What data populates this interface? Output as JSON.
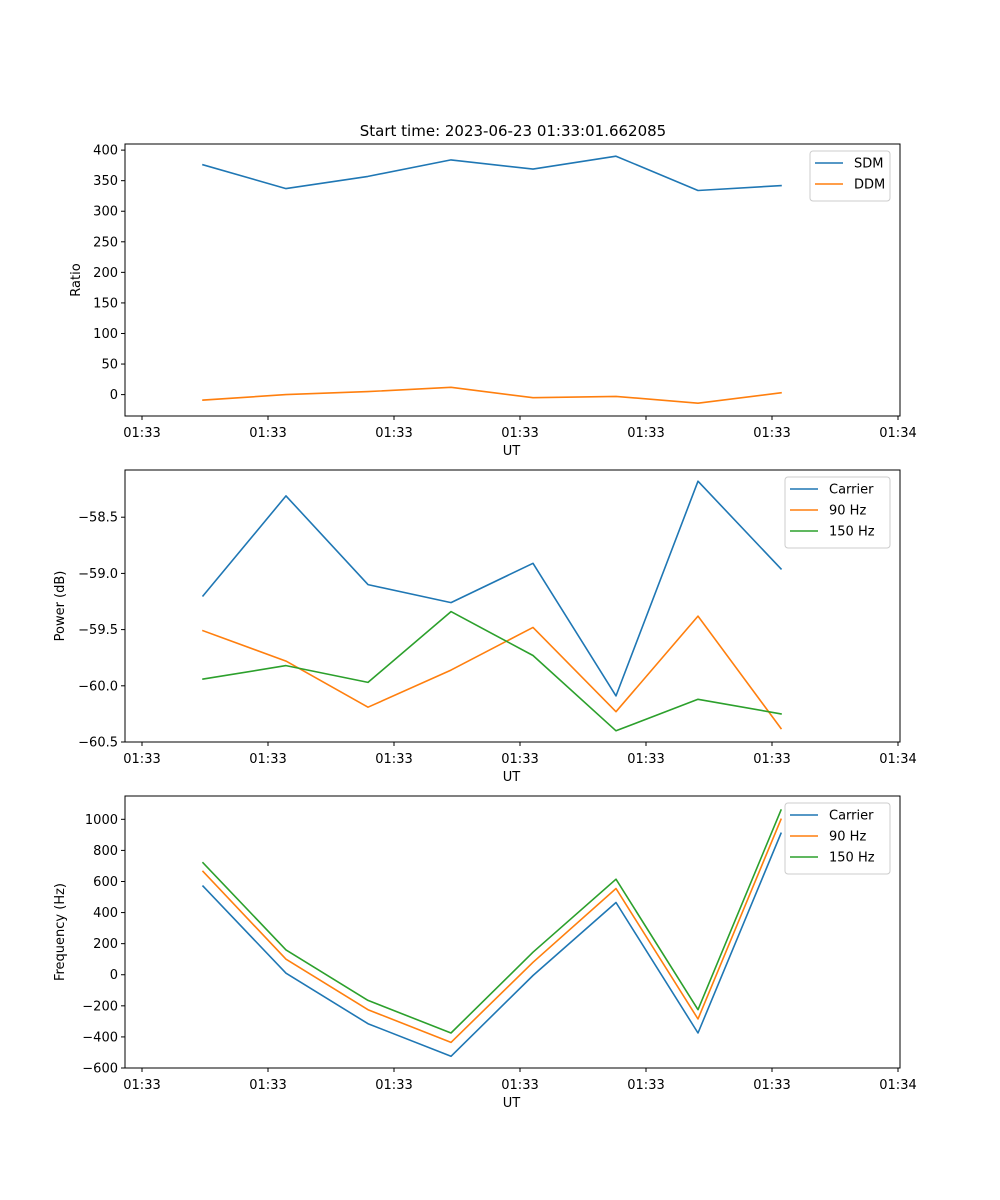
{
  "figure": {
    "title": "Start time: 2023-06-23 01:33:01.662085"
  },
  "chart_data": [
    {
      "type": "line",
      "title": "Start time: 2023-06-23 01:33:01.662085",
      "xlabel": "UT",
      "ylabel": "Ratio",
      "x_tick_labels": [
        "01:33",
        "01:33",
        "01:33",
        "01:33",
        "01:33",
        "01:33",
        "01:34"
      ],
      "y_ticks": [
        0,
        50,
        100,
        150,
        200,
        250,
        300,
        350,
        400
      ],
      "ylim": [
        -35,
        410
      ],
      "grid": false,
      "legend": "upper right",
      "series": [
        {
          "name": "SDM",
          "color": "#1f77b4",
          "values": [
            376,
            337,
            357,
            384,
            369,
            390,
            334,
            342
          ]
        },
        {
          "name": "DDM",
          "color": "#ff7f0e",
          "values": [
            -9,
            0,
            5,
            12,
            -5,
            -3,
            -14,
            3
          ]
        }
      ]
    },
    {
      "type": "line",
      "title": "",
      "xlabel": "UT",
      "ylabel": "Power (dB)",
      "x_tick_labels": [
        "01:33",
        "01:33",
        "01:33",
        "01:33",
        "01:33",
        "01:33",
        "01:34"
      ],
      "y_ticks": [
        -58.5,
        -59.0,
        -59.5,
        -60.0,
        -60.5
      ],
      "y_tick_labels": [
        "−58.5",
        "−59.0",
        "−59.5",
        "−60.0",
        "−60.5"
      ],
      "ylim": [
        -60.5,
        -58.08
      ],
      "grid": false,
      "legend": "upper right",
      "series": [
        {
          "name": "Carrier",
          "color": "#1f77b4",
          "values": [
            -59.2,
            -58.31,
            -59.1,
            -59.26,
            -58.91,
            -60.09,
            -58.18,
            -58.96
          ]
        },
        {
          "name": "90 Hz",
          "color": "#ff7f0e",
          "values": [
            -59.51,
            -59.78,
            -60.19,
            -59.86,
            -59.48,
            -60.23,
            -59.38,
            -60.38
          ]
        },
        {
          "name": "150 Hz",
          "color": "#2ca02c",
          "values": [
            -59.94,
            -59.82,
            -59.97,
            -59.34,
            -59.73,
            -60.4,
            -60.12,
            -60.25
          ]
        }
      ]
    },
    {
      "type": "line",
      "title": "",
      "xlabel": "UT",
      "ylabel": "Frequency (Hz)",
      "x_tick_labels": [
        "01:33",
        "01:33",
        "01:33",
        "01:33",
        "01:33",
        "01:33",
        "01:34"
      ],
      "y_ticks": [
        1000,
        800,
        600,
        400,
        200,
        0,
        -200,
        -400,
        -600
      ],
      "y_tick_labels": [
        "1000",
        "800",
        "600",
        "400",
        "200",
        "0",
        "−200",
        "−400",
        "−600"
      ],
      "ylim": [
        -600,
        1150
      ],
      "grid": false,
      "legend": "upper right",
      "series": [
        {
          "name": "Carrier",
          "color": "#1f77b4",
          "values": [
            570,
            10,
            -315,
            -525,
            -5,
            465,
            -375,
            910
          ]
        },
        {
          "name": "90 Hz",
          "color": "#ff7f0e",
          "values": [
            665,
            100,
            -225,
            -435,
            80,
            555,
            -285,
            1000
          ]
        },
        {
          "name": "150 Hz",
          "color": "#2ca02c",
          "values": [
            720,
            160,
            -165,
            -375,
            145,
            615,
            -225,
            1060
          ]
        }
      ]
    }
  ]
}
